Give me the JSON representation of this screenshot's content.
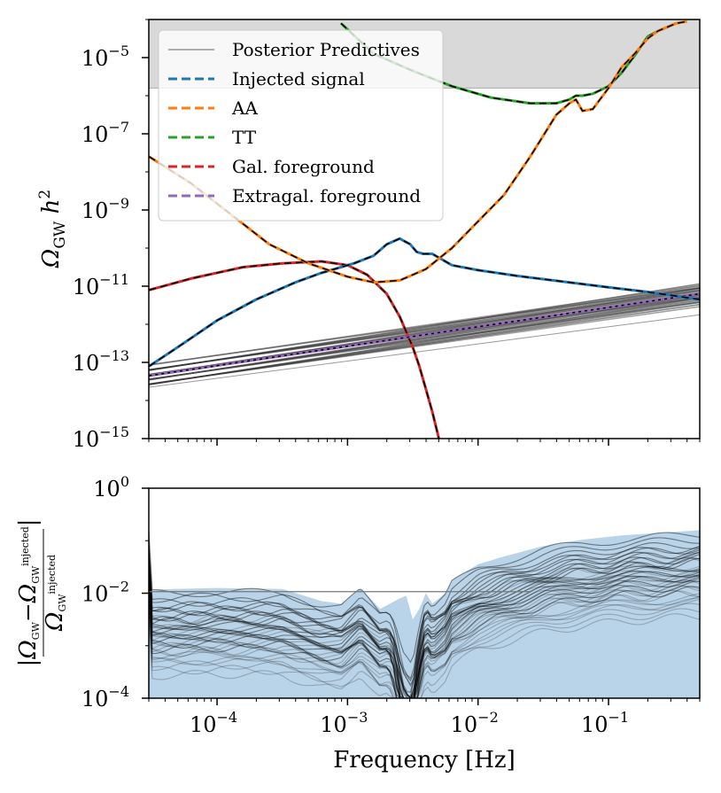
{
  "chart_data": [
    {
      "type": "line",
      "panel": "top",
      "ylabel": "Ω_GW h²",
      "xscale": "log",
      "yscale": "log",
      "xlim": [
        3e-05,
        0.5
      ],
      "ylim": [
        1e-15,
        0.0001
      ],
      "yticks": [
        {
          "base": "10",
          "exp": "−15",
          "value": -15
        },
        {
          "base": "10",
          "exp": "−13",
          "value": -13
        },
        {
          "base": "10",
          "exp": "−11",
          "value": -11
        },
        {
          "base": "10",
          "exp": "−9",
          "value": -9
        },
        {
          "base": "10",
          "exp": "−7",
          "value": -7
        },
        {
          "base": "10",
          "exp": "−5",
          "value": -5
        }
      ],
      "shaded_region": {
        "ymin_log10": -5.8,
        "color": "#d9d9d9",
        "note": "excluded region"
      },
      "legend": [
        {
          "label": "Posterior Predictives",
          "color": "#808080",
          "style": "solid"
        },
        {
          "label": "Injected signal",
          "color": "#1f77b4",
          "style": "dashed"
        },
        {
          "label": "AA",
          "color": "#ff7f0e",
          "style": "dashed"
        },
        {
          "label": "TT",
          "color": "#2ca02c",
          "style": "dashed"
        },
        {
          "label": "Gal. foreground",
          "color": "#d62728",
          "style": "dashed"
        },
        {
          "label": "Extragal. foreground",
          "color": "#9467bd",
          "style": "dashed"
        }
      ],
      "series": [
        {
          "name": "Injected signal",
          "color": "#1f77b4",
          "log10_x": [
            -4.52,
            -4.3,
            -4.0,
            -3.7,
            -3.4,
            -3.2,
            -3.05,
            -2.95,
            -2.8,
            -2.7,
            -2.6,
            -2.52,
            -2.47,
            -2.42,
            -2.35,
            -2.3,
            -2.2,
            -2.0,
            -1.7,
            -1.3,
            -1.0,
            -0.7,
            -0.3
          ],
          "log10_y": [
            -13.1,
            -12.6,
            -11.9,
            -11.35,
            -10.9,
            -10.65,
            -10.5,
            -10.4,
            -10.2,
            -9.9,
            -9.75,
            -9.9,
            -10.1,
            -10.15,
            -10.15,
            -10.25,
            -10.45,
            -10.58,
            -10.73,
            -10.9,
            -11.03,
            -11.15,
            -11.35
          ]
        },
        {
          "name": "AA",
          "color": "#ff7f0e",
          "log10_x": [
            -4.52,
            -4.2,
            -3.9,
            -3.6,
            -3.3,
            -3.0,
            -2.8,
            -2.6,
            -2.4,
            -2.2,
            -2.0,
            -1.8,
            -1.6,
            -1.4,
            -1.3,
            -1.25,
            -1.2,
            -1.12,
            -1.0,
            -0.9,
            -0.8,
            -0.7,
            -0.62,
            -0.55,
            -0.48,
            -0.4
          ],
          "log10_y": [
            -7.6,
            -8.3,
            -9.1,
            -9.9,
            -10.4,
            -10.75,
            -10.9,
            -10.85,
            -10.55,
            -10.0,
            -9.3,
            -8.6,
            -7.6,
            -6.5,
            -6.2,
            -6.1,
            -6.4,
            -6.35,
            -5.8,
            -5.25,
            -4.9,
            -4.5,
            -4.3,
            -4.2,
            -4.1,
            -4.05
          ]
        },
        {
          "name": "TT",
          "color": "#2ca02c",
          "log10_x": [
            -3.05,
            -2.8,
            -2.5,
            -2.2,
            -1.9,
            -1.6,
            -1.4,
            -1.3,
            -1.25,
            -1.2,
            -1.12,
            -1.0,
            -0.9,
            -0.8,
            -0.7,
            -0.62,
            -0.55,
            -0.48,
            -0.4
          ],
          "log10_y": [
            -4.1,
            -4.9,
            -5.35,
            -5.75,
            -6.05,
            -6.2,
            -6.2,
            -6.1,
            -6.0,
            -6.0,
            -5.95,
            -5.75,
            -5.4,
            -4.95,
            -4.45,
            -4.3,
            -4.2,
            -4.1,
            -4.05
          ]
        },
        {
          "name": "Gal. foreground",
          "color": "#d62728",
          "log10_x": [
            -4.52,
            -4.2,
            -3.8,
            -3.5,
            -3.2,
            -3.0,
            -2.85,
            -2.7,
            -2.6,
            -2.5,
            -2.45,
            -2.4,
            -2.35,
            -2.3
          ],
          "log10_y": [
            -11.1,
            -10.8,
            -10.5,
            -10.4,
            -10.35,
            -10.45,
            -10.7,
            -11.2,
            -11.8,
            -12.6,
            -13.1,
            -13.7,
            -14.3,
            -15.0
          ]
        },
        {
          "name": "Extragal. foreground",
          "color": "#9467bd",
          "log10_x": [
            -4.52,
            -0.3
          ],
          "log10_y": [
            -13.35,
            -11.2
          ]
        }
      ]
    },
    {
      "type": "line",
      "panel": "bottom",
      "ylabel": "|Ω_GW − Ω_GW^injected| / Ω_GW^injected",
      "xlabel": "Frequency [Hz]",
      "xscale": "log",
      "yscale": "log",
      "xlim": [
        3e-05,
        0.5
      ],
      "ylim": [
        0.0001,
        1
      ],
      "xticks": [
        {
          "base": "10",
          "exp": "−4",
          "value": -4
        },
        {
          "base": "10",
          "exp": "−3",
          "value": -3
        },
        {
          "base": "10",
          "exp": "−2",
          "value": -2
        },
        {
          "base": "10",
          "exp": "−1",
          "value": -1
        }
      ],
      "yticks": [
        {
          "base": "10",
          "exp": "−4",
          "value": -4
        },
        {
          "base": "10",
          "exp": "−2",
          "value": -2
        },
        {
          "base": "10",
          "exp": "0",
          "value": 0
        }
      ],
      "band_fill_color": "#b9d3e8",
      "envelope": {
        "log10_x": [
          -4.52,
          -4.0,
          -3.5,
          -3.2,
          -3.05,
          -2.9,
          -2.75,
          -2.6,
          -2.55,
          -2.5,
          -2.45,
          -2.4,
          -2.35,
          -2.3,
          -2.25,
          -2.2,
          -2.1,
          -2.0,
          -1.8,
          -1.5,
          -1.2,
          -0.9,
          -0.6,
          -0.3
        ],
        "log10_y": [
          -1.93,
          -1.9,
          -1.92,
          -2.15,
          -2.2,
          -1.9,
          -2.3,
          -2.1,
          -2.05,
          -2.5,
          -2.3,
          -2.0,
          -2.2,
          -2.1,
          -2.0,
          -1.75,
          -1.6,
          -1.45,
          -1.3,
          -1.1,
          -0.98,
          -0.9,
          -0.85,
          -0.8
        ]
      }
    }
  ]
}
